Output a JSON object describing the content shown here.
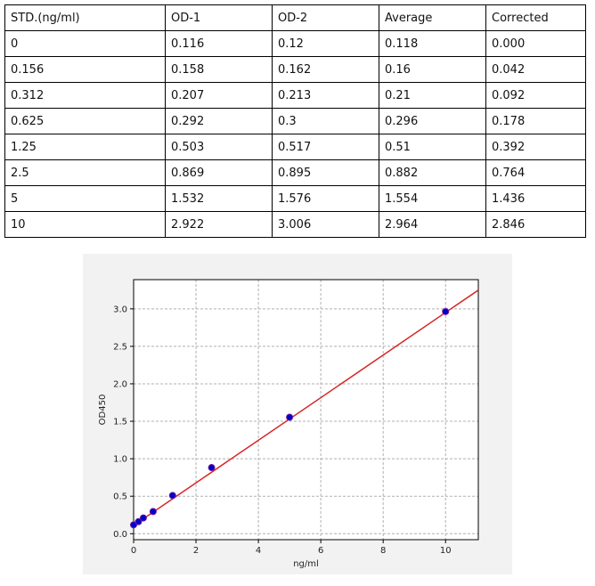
{
  "table": {
    "header": [
      "STD.(ng/ml)",
      "OD-1",
      "OD-2",
      "Average",
      "Corrected"
    ],
    "rows": [
      [
        "0",
        "0.116",
        "0.12",
        "0.118",
        "0.000"
      ],
      [
        "0.156",
        "0.158",
        "0.162",
        "0.16",
        "0.042"
      ],
      [
        "0.312",
        "0.207",
        "0.213",
        "0.21",
        "0.092"
      ],
      [
        "0.625",
        "0.292",
        "0.3",
        "0.296",
        "0.178"
      ],
      [
        "1.25",
        "0.503",
        "0.517",
        "0.51",
        "0.392"
      ],
      [
        "2.5",
        "0.869",
        "0.895",
        "0.882",
        "0.764"
      ],
      [
        "5",
        "1.532",
        "1.576",
        "1.554",
        "1.436"
      ],
      [
        "10",
        "2.922",
        "3.006",
        "2.964",
        "2.846"
      ]
    ]
  },
  "chart_data": {
    "type": "scatter",
    "x_label": "ng/ml",
    "y_label": "OD450",
    "xlim": [
      0,
      11.05
    ],
    "ylim": [
      -0.08,
      3.39
    ],
    "xticks": [
      0,
      2,
      4,
      6,
      8,
      10
    ],
    "yticks": [
      {
        "value": 0,
        "label": "0.0"
      },
      {
        "value": 0.5,
        "label": "0.5"
      },
      {
        "value": 1,
        "label": "1.0"
      },
      {
        "value": 1.5,
        "label": "1.5"
      },
      {
        "value": 2,
        "label": "2.0"
      },
      {
        "value": 2.5,
        "label": "2.5"
      },
      {
        "value": 3,
        "label": "3.0"
      }
    ],
    "grid": true,
    "series": [
      {
        "type": "scatter",
        "color": "#0000cc",
        "x": [
          0,
          0.156,
          0.312,
          0.625,
          1.25,
          2.5,
          5,
          10
        ],
        "values": [
          0.118,
          0.16,
          0.21,
          0.296,
          0.51,
          0.882,
          1.554,
          2.964
        ]
      },
      {
        "type": "line",
        "color": "#d62728",
        "x": [
          0,
          11.05
        ],
        "values": [
          0.11,
          3.25
        ]
      }
    ]
  }
}
